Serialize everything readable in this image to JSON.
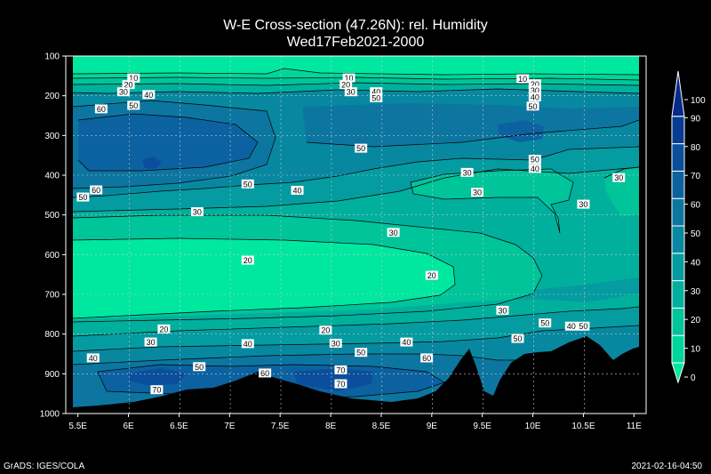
{
  "chart_data": {
    "type": "contour",
    "title": "W-E Cross-section (47.26N): rel. Humidity",
    "subtitle": "Wed17Feb2021-2000",
    "x_ticks": [
      "5.5E",
      "6E",
      "6.5E",
      "7E",
      "7.5E",
      "8E",
      "8.5E",
      "9E",
      "9.5E",
      "10E",
      "10.5E",
      "11E"
    ],
    "x_values": [
      5.5,
      6,
      6.5,
      7,
      7.5,
      8,
      8.5,
      9,
      9.5,
      10,
      10.5,
      11
    ],
    "xlim": [
      5.45,
      11.05
    ],
    "y_ticks": [
      "100",
      "200",
      "300",
      "400",
      "500",
      "600",
      "700",
      "800",
      "900",
      "1000"
    ],
    "y_values": [
      100,
      200,
      300,
      400,
      500,
      600,
      700,
      800,
      900,
      1000
    ],
    "ylim": [
      100,
      1000
    ],
    "grid": true,
    "colorbar": {
      "ticks": [
        "0",
        "10",
        "20",
        "30",
        "40",
        "50",
        "60",
        "70",
        "80",
        "90",
        "100"
      ],
      "colors": [
        "#00e8a0",
        "#00d69a",
        "#00c49a",
        "#00b09c",
        "#049ca0",
        "#0888a0",
        "#0c76a0",
        "#0c62a0",
        "#0a4e9c",
        "#083c92",
        "#062a88"
      ]
    },
    "contour_labels": [
      {
        "text": "10",
        "lon": 6.05,
        "p": 155
      },
      {
        "text": "20",
        "lon": 6.0,
        "p": 172
      },
      {
        "text": "30",
        "lon": 5.95,
        "p": 190
      },
      {
        "text": "40",
        "lon": 6.2,
        "p": 197
      },
      {
        "text": "50",
        "lon": 6.05,
        "p": 224
      },
      {
        "text": "60",
        "lon": 5.73,
        "p": 233
      },
      {
        "text": "10",
        "lon": 8.18,
        "p": 155
      },
      {
        "text": "20",
        "lon": 8.15,
        "p": 172
      },
      {
        "text": "30",
        "lon": 8.2,
        "p": 190
      },
      {
        "text": "40",
        "lon": 8.45,
        "p": 190
      },
      {
        "text": "50",
        "lon": 8.45,
        "p": 205
      },
      {
        "text": "10",
        "lon": 9.9,
        "p": 157
      },
      {
        "text": "20",
        "lon": 10.02,
        "p": 170
      },
      {
        "text": "30",
        "lon": 10.02,
        "p": 186
      },
      {
        "text": "40",
        "lon": 10.02,
        "p": 203
      },
      {
        "text": "50",
        "lon": 10.0,
        "p": 226
      },
      {
        "text": "50",
        "lon": 8.3,
        "p": 332
      },
      {
        "text": "50",
        "lon": 10.02,
        "p": 360
      },
      {
        "text": "40",
        "lon": 10.02,
        "p": 383
      },
      {
        "text": "30",
        "lon": 9.35,
        "p": 393
      },
      {
        "text": "30",
        "lon": 10.85,
        "p": 406
      },
      {
        "text": "50",
        "lon": 7.18,
        "p": 422
      },
      {
        "text": "40",
        "lon": 7.67,
        "p": 438
      },
      {
        "text": "30",
        "lon": 9.45,
        "p": 443
      },
      {
        "text": "60",
        "lon": 5.68,
        "p": 437
      },
      {
        "text": "50",
        "lon": 5.55,
        "p": 455
      },
      {
        "text": "30",
        "lon": 10.5,
        "p": 473
      },
      {
        "text": "30",
        "lon": 6.68,
        "p": 492
      },
      {
        "text": "30",
        "lon": 8.62,
        "p": 544
      },
      {
        "text": "20",
        "lon": 7.18,
        "p": 614
      },
      {
        "text": "20",
        "lon": 9.0,
        "p": 652
      },
      {
        "text": "30",
        "lon": 9.7,
        "p": 740
      },
      {
        "text": "50",
        "lon": 10.12,
        "p": 772
      },
      {
        "text": "40",
        "lon": 10.38,
        "p": 780
      },
      {
        "text": "50",
        "lon": 10.5,
        "p": 780
      },
      {
        "text": "20",
        "lon": 6.35,
        "p": 787
      },
      {
        "text": "20",
        "lon": 7.95,
        "p": 790
      },
      {
        "text": "50",
        "lon": 9.85,
        "p": 811
      },
      {
        "text": "30",
        "lon": 6.22,
        "p": 820
      },
      {
        "text": "40",
        "lon": 7.18,
        "p": 824
      },
      {
        "text": "30",
        "lon": 8.05,
        "p": 823
      },
      {
        "text": "40",
        "lon": 8.75,
        "p": 820
      },
      {
        "text": "50",
        "lon": 8.3,
        "p": 846
      },
      {
        "text": "60",
        "lon": 8.95,
        "p": 860
      },
      {
        "text": "40",
        "lon": 5.65,
        "p": 860
      },
      {
        "text": "50",
        "lon": 6.7,
        "p": 882
      },
      {
        "text": "70",
        "lon": 8.1,
        "p": 890
      },
      {
        "text": "60",
        "lon": 7.35,
        "p": 898
      },
      {
        "text": "70",
        "lon": 8.1,
        "p": 925
      },
      {
        "text": "70",
        "lon": 6.28,
        "p": 940
      }
    ]
  },
  "footer": {
    "left": "GrADS: IGES/COLA",
    "right": "2021-02-16-04:50"
  }
}
